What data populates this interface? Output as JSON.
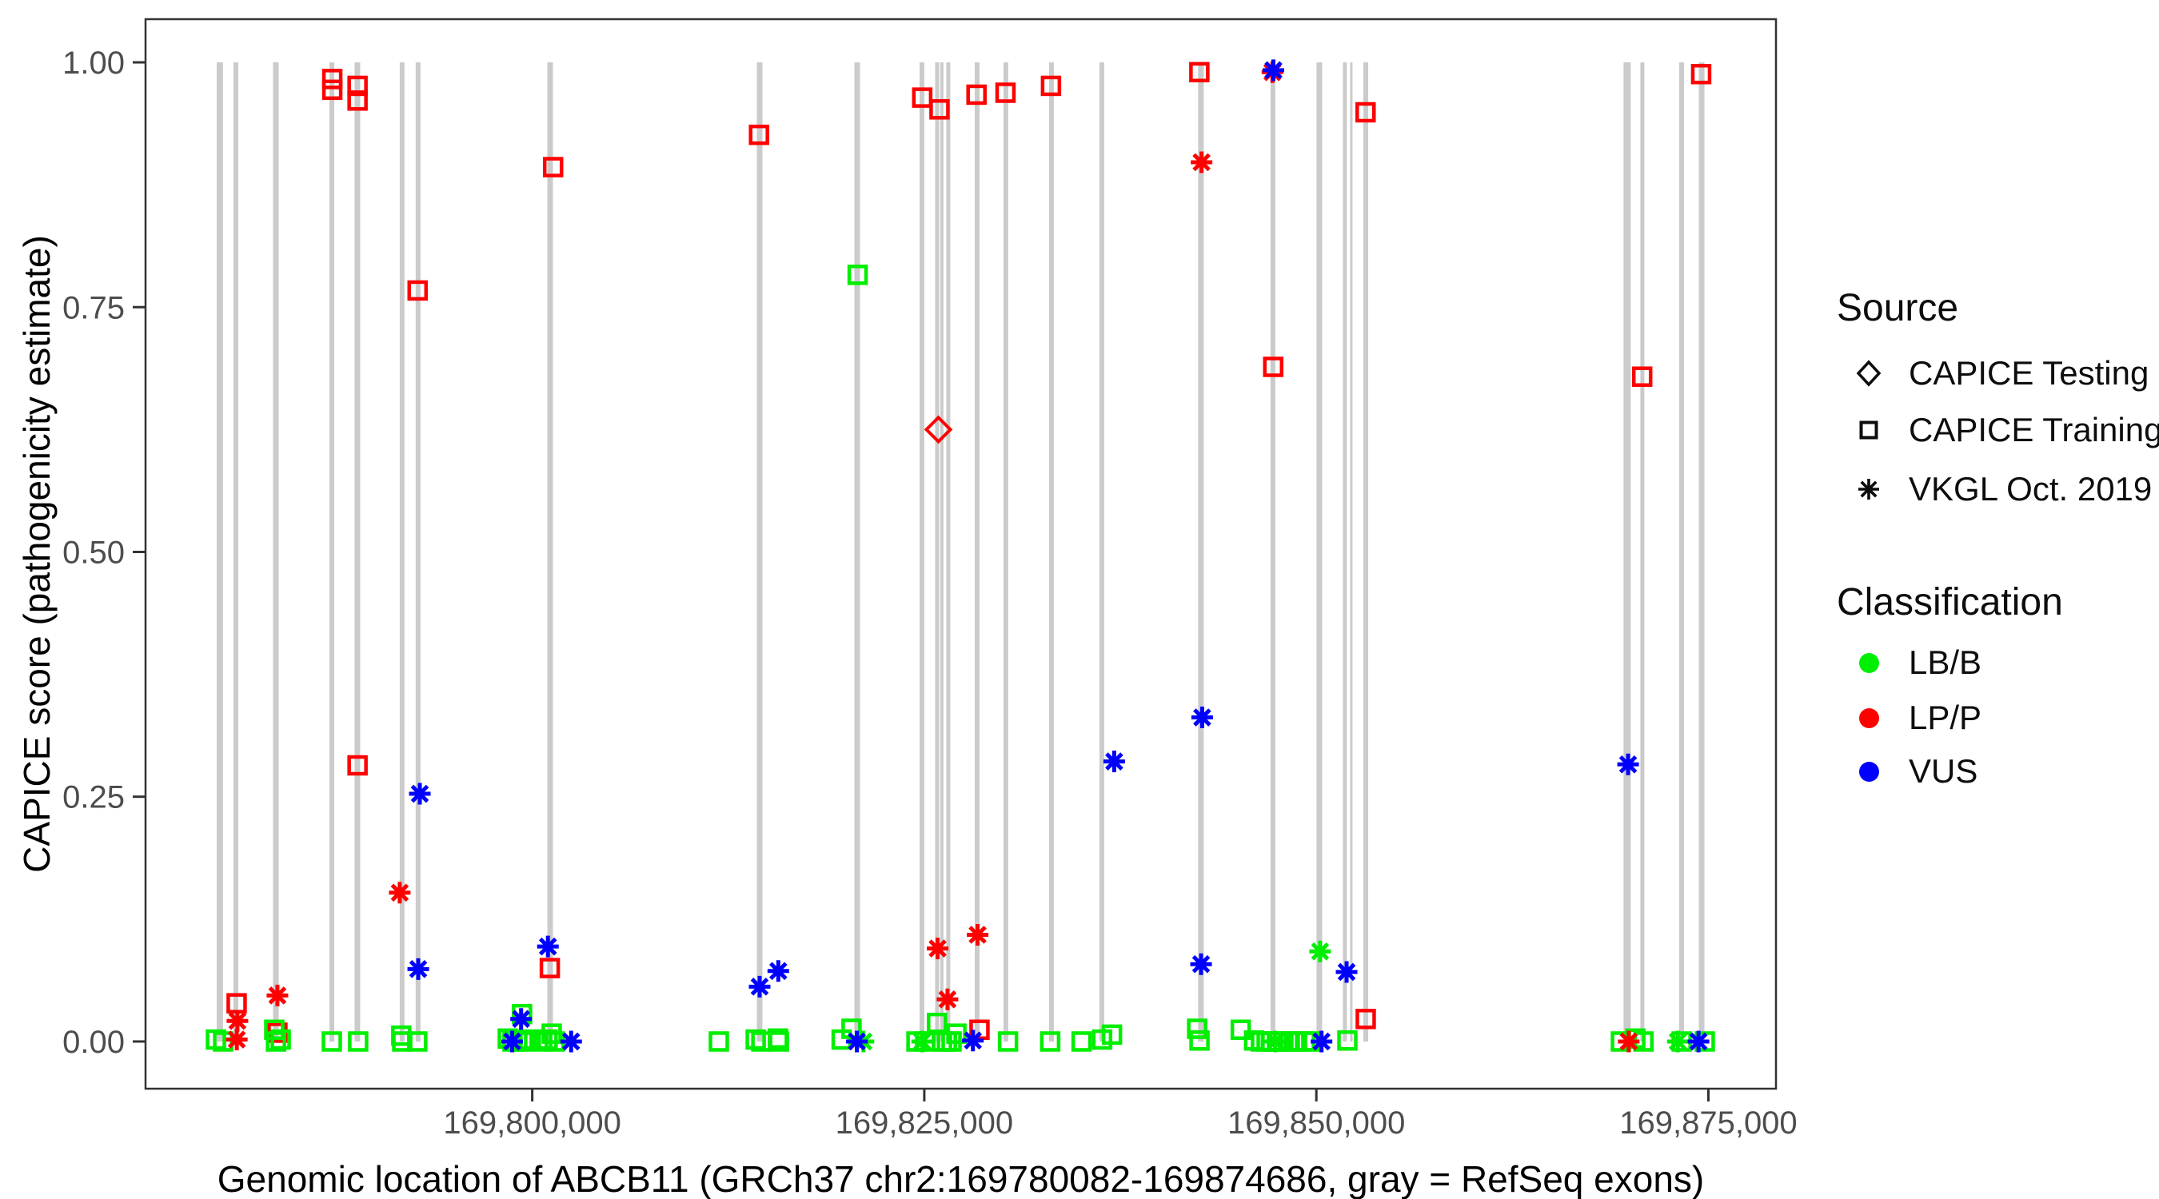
{
  "chart_data": {
    "type": "scatter",
    "title": "",
    "xlabel": "Genomic location of ABCB11 (GRCh37 chr2:169780082-169874686, gray = RefSeq exons)",
    "ylabel": "CAPICE score (pathogenicity estimate)",
    "x_domain": [
      169775340,
      169879310
    ],
    "y_domain": [
      -0.0482,
      1.0441
    ],
    "grid": false,
    "x_ticks": [
      {
        "value": 169800000,
        "label": "169,800,000"
      },
      {
        "value": 169825000,
        "label": "169,825,000"
      },
      {
        "value": 169850000,
        "label": "169,850,000"
      },
      {
        "value": 169875000,
        "label": "169,875,000"
      }
    ],
    "y_ticks": [
      {
        "value": 0.0,
        "label": "0.00"
      },
      {
        "value": 0.25,
        "label": "0.25"
      },
      {
        "value": 0.5,
        "label": "0.50"
      },
      {
        "value": 0.75,
        "label": "0.75"
      },
      {
        "value": 1.0,
        "label": "1.00"
      }
    ],
    "exon_color": "#cbcbcb",
    "exons": [
      {
        "pos": 169780080,
        "stroke_px": 8
      },
      {
        "pos": 169781100,
        "stroke_px": 6
      },
      {
        "pos": 169783650,
        "stroke_px": 7
      },
      {
        "pos": 169787220,
        "stroke_px": 6
      },
      {
        "pos": 169788850,
        "stroke_px": 7
      },
      {
        "pos": 169791700,
        "stroke_px": 6
      },
      {
        "pos": 169792720,
        "stroke_px": 6
      },
      {
        "pos": 169801140,
        "stroke_px": 7
      },
      {
        "pos": 169814500,
        "stroke_px": 7
      },
      {
        "pos": 169820720,
        "stroke_px": 7
      },
      {
        "pos": 169824850,
        "stroke_px": 6
      },
      {
        "pos": 169825820,
        "stroke_px": 5
      },
      {
        "pos": 169826120,
        "stroke_px": 4
      },
      {
        "pos": 169826530,
        "stroke_px": 5
      },
      {
        "pos": 169828370,
        "stroke_px": 6
      },
      {
        "pos": 169830200,
        "stroke_px": 6
      },
      {
        "pos": 169833110,
        "stroke_px": 6
      },
      {
        "pos": 169836320,
        "stroke_px": 6
      },
      {
        "pos": 169842640,
        "stroke_px": 7
      },
      {
        "pos": 169847230,
        "stroke_px": 6
      },
      {
        "pos": 169850190,
        "stroke_px": 7
      },
      {
        "pos": 169851820,
        "stroke_px": 5
      },
      {
        "pos": 169852230,
        "stroke_px": 3
      },
      {
        "pos": 169853150,
        "stroke_px": 6
      },
      {
        "pos": 169869820,
        "stroke_px": 9
      },
      {
        "pos": 169870790,
        "stroke_px": 5
      },
      {
        "pos": 169873290,
        "stroke_px": 6
      },
      {
        "pos": 169874570,
        "stroke_px": 7
      }
    ],
    "series": [
      {
        "name": "CAPICE Testing / LP-P",
        "source": "CAPICE Testing",
        "classification": "LP/P",
        "marker": "diamond",
        "color": "#ff0000",
        "points": [
          [
            169825900,
            0.625
          ]
        ]
      },
      {
        "name": "CAPICE Training / LP-P",
        "source": "CAPICE Training",
        "classification": "LP/P",
        "marker": "square",
        "color": "#ff0000",
        "points": [
          [
            169787250,
            0.983
          ],
          [
            169787250,
            0.972
          ],
          [
            169788860,
            0.976
          ],
          [
            169788860,
            0.961
          ],
          [
            169788860,
            0.282
          ],
          [
            169792690,
            0.767
          ],
          [
            169801330,
            0.893
          ],
          [
            169814460,
            0.926
          ],
          [
            169824870,
            0.964
          ],
          [
            169825970,
            0.952
          ],
          [
            169828330,
            0.967
          ],
          [
            169830180,
            0.969
          ],
          [
            169833080,
            0.976
          ],
          [
            169842540,
            0.99
          ],
          [
            169847250,
            0.689
          ],
          [
            169853140,
            0.949
          ],
          [
            169870780,
            0.679
          ],
          [
            169874540,
            0.988
          ],
          [
            169781150,
            0.039
          ],
          [
            169783750,
            0.009
          ],
          [
            169801120,
            0.075
          ],
          [
            169828520,
            0.012
          ],
          [
            169853150,
            0.023
          ]
        ]
      },
      {
        "name": "CAPICE Training / LB-B",
        "source": "CAPICE Training",
        "classification": "LB/B",
        "marker": "square",
        "color": "#00ee00",
        "points": [
          [
            169820750,
            0.783
          ],
          [
            169779830,
            0.002
          ],
          [
            169780290,
            0.0
          ],
          [
            169783550,
            0.012
          ],
          [
            169783660,
            0.0
          ],
          [
            169783960,
            0.002
          ],
          [
            169787220,
            0.0
          ],
          [
            169788900,
            0.0
          ],
          [
            169791650,
            0.006
          ],
          [
            169791710,
            0.0
          ],
          [
            169792670,
            0.0
          ],
          [
            169798440,
            0.003
          ],
          [
            169798740,
            0.0
          ],
          [
            169799050,
            0.0
          ],
          [
            169799350,
            0.028
          ],
          [
            169799400,
            0.0
          ],
          [
            169799760,
            0.002
          ],
          [
            169800630,
            0.0
          ],
          [
            169800980,
            0.002
          ],
          [
            169801240,
            0.008
          ],
          [
            169801440,
            0.0
          ],
          [
            169811900,
            0.0
          ],
          [
            169814250,
            0.002
          ],
          [
            169814610,
            0.0
          ],
          [
            169815670,
            0.003
          ],
          [
            169815730,
            0.0
          ],
          [
            169819730,
            0.002
          ],
          [
            169820360,
            0.013
          ],
          [
            169824500,
            0.0
          ],
          [
            169825060,
            0.0
          ],
          [
            169825810,
            0.019
          ],
          [
            169826130,
            0.0
          ],
          [
            169826440,
            0.0
          ],
          [
            169826740,
            0.0
          ],
          [
            169827050,
            0.008
          ],
          [
            169830340,
            0.0
          ],
          [
            169833030,
            0.0
          ],
          [
            169835030,
            0.0
          ],
          [
            169836340,
            0.002
          ],
          [
            169836970,
            0.007
          ],
          [
            169842400,
            0.013
          ],
          [
            169842550,
            0.001
          ],
          [
            169845180,
            0.012
          ],
          [
            169846030,
            0.001
          ],
          [
            169846470,
            0.0
          ],
          [
            169846830,
            0.0
          ],
          [
            169847130,
            0.0
          ],
          [
            169847490,
            0.0
          ],
          [
            169847900,
            0.0
          ],
          [
            169848310,
            0.0
          ],
          [
            169848770,
            0.0
          ],
          [
            169849280,
            0.0
          ],
          [
            169849680,
            0.0
          ],
          [
            169851980,
            0.001
          ],
          [
            169869420,
            0.0
          ],
          [
            169870340,
            0.003
          ],
          [
            169870860,
            0.0
          ],
          [
            169873300,
            0.0
          ],
          [
            169874770,
            0.0
          ]
        ]
      },
      {
        "name": "VKGL Oct. 2019 / LP-P",
        "source": "VKGL Oct. 2019",
        "classification": "LP/P",
        "marker": "asterisk",
        "color": "#ff0000",
        "points": [
          [
            169781200,
            0.021
          ],
          [
            169781160,
            0.002
          ],
          [
            169783750,
            0.047
          ],
          [
            169791550,
            0.152
          ],
          [
            169825850,
            0.095
          ],
          [
            169826480,
            0.043
          ],
          [
            169828400,
            0.109
          ],
          [
            169842680,
            0.898
          ],
          [
            169847200,
            0.99
          ],
          [
            169869920,
            0.0
          ]
        ]
      },
      {
        "name": "VKGL Oct. 2019 / LB-B",
        "source": "VKGL Oct. 2019",
        "classification": "LB/B",
        "marker": "asterisk",
        "color": "#00ee00",
        "points": [
          [
            169824870,
            0.0
          ],
          [
            169821120,
            0.0
          ],
          [
            169847390,
            0.0
          ],
          [
            169850240,
            0.092
          ],
          [
            169873050,
            0.0
          ]
        ]
      },
      {
        "name": "VKGL Oct. 2019 / VUS",
        "source": "VKGL Oct. 2019",
        "classification": "VUS",
        "marker": "asterisk",
        "color": "#0000ff",
        "points": [
          [
            169792830,
            0.253
          ],
          [
            169792730,
            0.074
          ],
          [
            169798720,
            0.0
          ],
          [
            169799290,
            0.023
          ],
          [
            169801000,
            0.097
          ],
          [
            169802480,
            0.0
          ],
          [
            169814500,
            0.056
          ],
          [
            169815690,
            0.072
          ],
          [
            169820700,
            0.0
          ],
          [
            169828100,
            0.001
          ],
          [
            169837110,
            0.286
          ],
          [
            169842650,
            0.079
          ],
          [
            169842720,
            0.331
          ],
          [
            169847260,
            0.992
          ],
          [
            169850330,
            0.0
          ],
          [
            169851930,
            0.071
          ],
          [
            169869880,
            0.283
          ],
          [
            169874370,
            0.0
          ]
        ]
      }
    ]
  },
  "legend": {
    "source": {
      "title": "Source",
      "items": [
        {
          "label": "CAPICE Testing",
          "marker": "diamond"
        },
        {
          "label": "CAPICE Training",
          "marker": "square"
        },
        {
          "label": "VKGL Oct. 2019",
          "marker": "asterisk"
        }
      ]
    },
    "classification": {
      "title": "Classification",
      "items": [
        {
          "label": "LB/B",
          "color": "#00ee00"
        },
        {
          "label": "LP/P",
          "color": "#ff0000"
        },
        {
          "label": "VUS",
          "color": "#0000ff"
        }
      ]
    }
  },
  "colors": {
    "panel_border": "#333333",
    "tick_label": "#4d4d4d",
    "axis_title": "#000000",
    "exon_gray": "#cbcbcb"
  }
}
